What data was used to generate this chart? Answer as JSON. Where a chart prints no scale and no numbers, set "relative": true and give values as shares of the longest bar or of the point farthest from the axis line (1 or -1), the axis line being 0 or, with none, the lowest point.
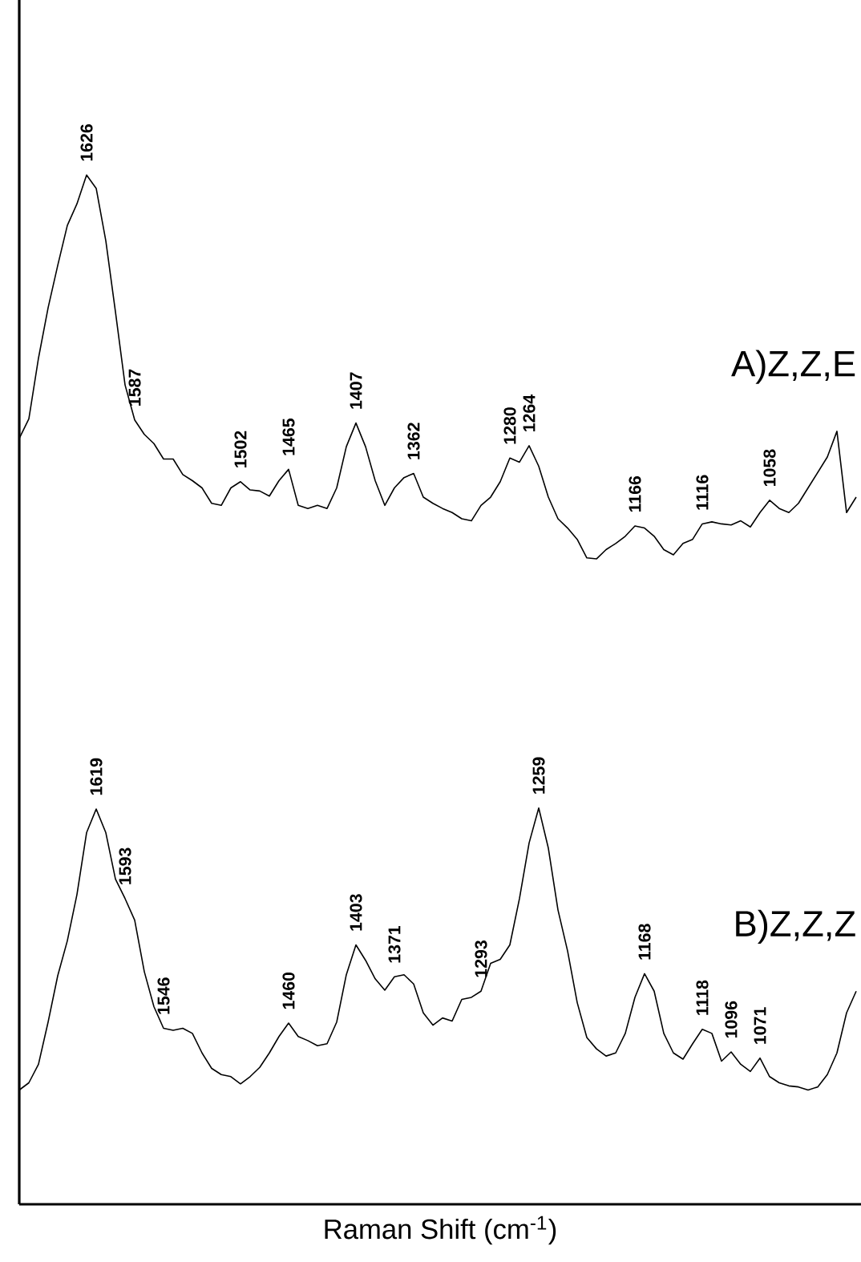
{
  "chart_data": {
    "type": "line",
    "relative": true,
    "xlabel": "Raman Shift (cm$^{-1}$)",
    "categories": [
      null,
      null,
      null,
      null,
      null,
      null,
      null,
      null,
      null,
      null,
      null,
      null,
      null,
      null,
      null,
      null,
      null,
      null,
      null,
      null,
      null,
      null,
      null,
      null,
      null,
      null,
      null,
      null,
      null,
      null,
      null,
      null,
      null,
      null,
      null,
      null,
      null,
      null,
      null,
      null,
      null,
      null,
      null,
      null,
      null,
      null,
      null,
      null,
      null,
      null,
      null,
      null,
      null,
      null,
      null,
      null,
      null,
      null,
      null,
      null,
      null,
      null,
      null,
      null,
      null,
      null,
      null,
      null,
      null,
      null,
      null,
      null,
      null,
      null,
      null,
      null,
      null,
      null,
      null,
      null,
      null,
      null,
      null,
      null,
      null,
      null,
      null,
      null
    ],
    "series": [
      {
        "name": "A)Z,Z,E",
        "color": "#000000",
        "values": [
          0.744,
          0.763,
          0.822,
          0.871,
          0.912,
          0.951,
          0.972,
          1,
          0.987,
          0.936,
          0.867,
          0.796,
          0.762,
          0.748,
          0.739,
          0.724,
          0.724,
          0.709,
          0.703,
          0.696,
          0.681,
          0.679,
          0.696,
          0.702,
          0.694,
          0.693,
          0.688,
          0.703,
          0.714,
          0.679,
          0.676,
          0.679,
          0.676,
          0.696,
          0.736,
          0.759,
          0.736,
          0.703,
          0.679,
          0.696,
          0.706,
          0.71,
          0.687,
          0.681,
          0.676,
          0.672,
          0.666,
          0.664,
          0.679,
          0.687,
          0.702,
          0.725,
          0.721,
          0.737,
          0.717,
          0.687,
          0.666,
          0.657,
          0.646,
          0.628,
          0.627,
          0.636,
          0.642,
          0.649,
          0.659,
          0.657,
          0.649,
          0.636,
          0.631,
          0.642,
          0.646,
          0.661,
          0.663,
          0.661,
          0.66,
          0.664,
          0.658,
          0.672,
          0.684,
          0.676,
          0.672,
          0.681,
          0.696,
          0.711,
          0.726,
          0.751,
          0.672,
          0.687
        ]
      },
      {
        "name": "B)Z,Z,Z",
        "color": "#000000",
        "values": [
          0.111,
          0.118,
          0.136,
          0.177,
          0.222,
          0.256,
          0.301,
          0.361,
          0.384,
          0.361,
          0.316,
          0.297,
          0.276,
          0.226,
          0.192,
          0.171,
          0.169,
          0.171,
          0.166,
          0.147,
          0.132,
          0.126,
          0.124,
          0.117,
          0.124,
          0.133,
          0.147,
          0.163,
          0.176,
          0.163,
          0.159,
          0.154,
          0.156,
          0.177,
          0.223,
          0.252,
          0.237,
          0.219,
          0.208,
          0.221,
          0.223,
          0.214,
          0.186,
          0.174,
          0.181,
          0.178,
          0.199,
          0.201,
          0.207,
          0.234,
          0.238,
          0.252,
          0.297,
          0.351,
          0.385,
          0.346,
          0.286,
          0.246,
          0.196,
          0.162,
          0.151,
          0.144,
          0.147,
          0.166,
          0.201,
          0.224,
          0.207,
          0.166,
          0.147,
          0.141,
          0.156,
          0.17,
          0.166,
          0.139,
          0.148,
          0.136,
          0.129,
          0.142,
          0.124,
          0.118,
          0.115,
          0.114,
          0.111,
          0.114,
          0.126,
          0.147,
          0.186,
          0.207
        ]
      }
    ],
    "annotations": [
      {
        "text": "1626",
        "y": 1
      },
      {
        "text": "1587",
        "y": 0.762
      },
      {
        "text": "1502",
        "y": 0.702
      },
      {
        "text": "1465",
        "y": 0.714
      },
      {
        "text": "1407",
        "y": 0.759
      },
      {
        "text": "1362",
        "y": 0.71
      },
      {
        "text": "1280",
        "y": 0.725
      },
      {
        "text": "1264",
        "y": 0.737
      },
      {
        "text": "1166",
        "y": 0.659
      },
      {
        "text": "1116",
        "y": 0.661
      },
      {
        "text": "1058",
        "y": 0.684
      },
      {
        "text": "1619",
        "y": 0.384
      },
      {
        "text": "1593",
        "y": 0.297
      },
      {
        "text": "1546",
        "y": 0.171
      },
      {
        "text": "1460",
        "y": 0.176
      },
      {
        "text": "1403",
        "y": 0.252
      },
      {
        "text": "1371",
        "y": 0.221
      },
      {
        "text": "1293",
        "y": 0.207
      },
      {
        "text": "1259",
        "y": 0.385
      },
      {
        "text": "1168",
        "y": 0.224
      },
      {
        "text": "1118",
        "y": 0.17
      },
      {
        "text": "1096",
        "y": 0.148
      },
      {
        "text": "1071",
        "y": 0.142
      }
    ]
  }
}
